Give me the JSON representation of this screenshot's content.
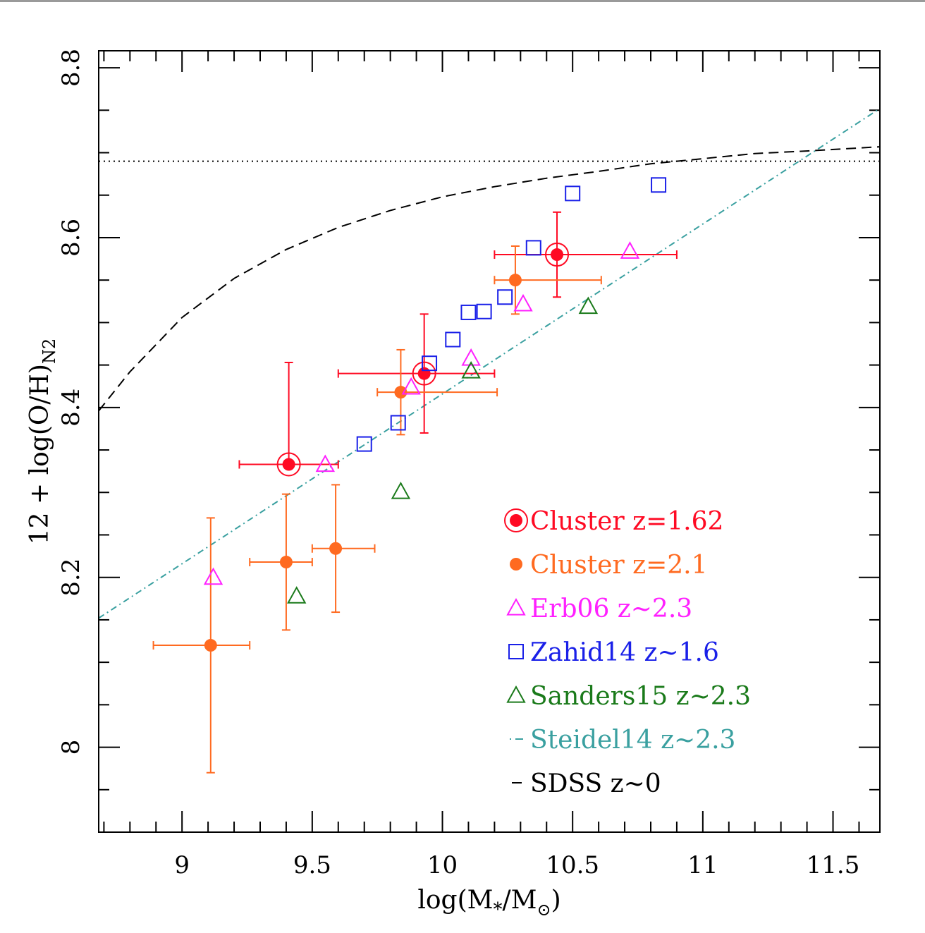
{
  "chart_data": {
    "type": "scatter",
    "xlabel": "log(M",
    "xlabel_sub1": "*",
    "xlabel_mid": "/M",
    "xlabel_sub2": "⊙",
    "xlabel_end": ")",
    "ylabel": "12 + log(O/H)",
    "ylabel_sub": "N2",
    "xlim": [
      8.68,
      11.68
    ],
    "ylim": [
      7.9,
      8.82
    ],
    "x_ticks": [
      9,
      9.5,
      10,
      10.5,
      11,
      11.5
    ],
    "x_tick_labels": [
      "9",
      "9.5",
      "10",
      "10.5",
      "11",
      "11.5"
    ],
    "y_ticks": [
      8.0,
      8.2,
      8.4,
      8.6,
      8.8
    ],
    "y_tick_labels": [
      "8",
      "8.2",
      "8.4",
      "8.6",
      "8.8"
    ],
    "x_minor_step": 0.1,
    "y_minor_step": 0.05,
    "grid": false,
    "legend_position": "bottom-right",
    "colors": {
      "cluster162": "#ff0a23",
      "cluster21": "#ff6a20",
      "erb06": "#ff20ff",
      "zahid14": "#1a20e8",
      "sanders15": "#1a7a1a",
      "steidel14": "#3aa0a0",
      "sdss": "#000000"
    },
    "series": [
      {
        "name": "Cluster z=1.62",
        "key": "cluster162",
        "marker": "circled-dot",
        "points": [
          {
            "x": 9.41,
            "y": 8.333,
            "xerr": [
              0.19,
              0.19
            ],
            "yerr": [
              0.0,
              0.12
            ]
          },
          {
            "x": 9.93,
            "y": 8.44,
            "xerr": [
              0.33,
              0.27
            ],
            "yerr": [
              0.07,
              0.07
            ]
          },
          {
            "x": 10.44,
            "y": 8.58,
            "xerr": [
              0.24,
              0.46
            ],
            "yerr": [
              0.05,
              0.05
            ]
          }
        ]
      },
      {
        "name": "Cluster z=2.1",
        "key": "cluster21",
        "marker": "dot",
        "points": [
          {
            "x": 9.11,
            "y": 8.12,
            "xerr": [
              0.22,
              0.15
            ],
            "yerr": [
              0.15,
              0.15
            ]
          },
          {
            "x": 9.4,
            "y": 8.218,
            "xerr": [
              0.14,
              0.1
            ],
            "yerr": [
              0.08,
              0.08
            ]
          },
          {
            "x": 9.59,
            "y": 8.234,
            "xerr": [
              0.09,
              0.15
            ],
            "yerr": [
              0.075,
              0.075
            ]
          },
          {
            "x": 9.84,
            "y": 8.418,
            "xerr": [
              0.09,
              0.37
            ],
            "yerr": [
              0.05,
              0.05
            ]
          },
          {
            "x": 10.28,
            "y": 8.55,
            "xerr": [
              0.08,
              0.33
            ],
            "yerr": [
              0.04,
              0.04
            ]
          }
        ]
      },
      {
        "name": "Erb06 z~2.3",
        "key": "erb06",
        "marker": "triangle",
        "points": [
          {
            "x": 9.12,
            "y": 8.2
          },
          {
            "x": 9.55,
            "y": 8.333
          },
          {
            "x": 9.88,
            "y": 8.424
          },
          {
            "x": 10.11,
            "y": 8.458
          },
          {
            "x": 10.31,
            "y": 8.522
          },
          {
            "x": 10.72,
            "y": 8.584
          }
        ]
      },
      {
        "name": "Zahid14 z~1.6",
        "key": "zahid14",
        "marker": "square",
        "points": [
          {
            "x": 9.7,
            "y": 8.357
          },
          {
            "x": 9.83,
            "y": 8.382
          },
          {
            "x": 9.95,
            "y": 8.452
          },
          {
            "x": 10.04,
            "y": 8.48
          },
          {
            "x": 10.1,
            "y": 8.512
          },
          {
            "x": 10.16,
            "y": 8.513
          },
          {
            "x": 10.24,
            "y": 8.53
          },
          {
            "x": 10.35,
            "y": 8.588
          },
          {
            "x": 10.5,
            "y": 8.652
          },
          {
            "x": 10.83,
            "y": 8.662
          }
        ]
      },
      {
        "name": "Sanders15 z~2.3",
        "key": "sanders15",
        "marker": "triangle",
        "points": [
          {
            "x": 9.44,
            "y": 8.178
          },
          {
            "x": 9.84,
            "y": 8.301
          },
          {
            "x": 10.11,
            "y": 8.443
          },
          {
            "x": 10.56,
            "y": 8.519
          }
        ]
      },
      {
        "name": "Steidel14 z~2.3",
        "key": "steidel14",
        "marker": "dash-dot-line",
        "line": [
          [
            8.68,
            8.152
          ],
          [
            11.68,
            8.752
          ]
        ]
      },
      {
        "name": "SDSS z~0",
        "key": "sdss",
        "marker": "dashed-line",
        "line": [
          [
            8.68,
            8.396
          ],
          [
            8.8,
            8.442
          ],
          [
            9.0,
            8.506
          ],
          [
            9.2,
            8.552
          ],
          [
            9.4,
            8.586
          ],
          [
            9.6,
            8.612
          ],
          [
            9.8,
            8.632
          ],
          [
            10.0,
            8.648
          ],
          [
            10.2,
            8.66
          ],
          [
            10.4,
            8.67
          ],
          [
            10.6,
            8.678
          ],
          [
            10.8,
            8.687
          ],
          [
            11.0,
            8.693
          ],
          [
            11.2,
            8.699
          ],
          [
            11.4,
            8.702
          ],
          [
            11.68,
            8.707
          ]
        ]
      }
    ],
    "hline": {
      "y": 8.69,
      "style": "dotted"
    }
  }
}
